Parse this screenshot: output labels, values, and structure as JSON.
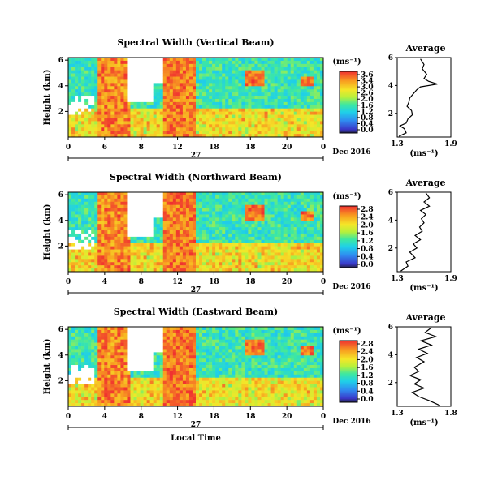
{
  "chart_data": [
    {
      "type": "heatmap",
      "title": "Spectral Width (Vertical Beam)",
      "ylabel": "Height (km)",
      "yticks": [
        "2",
        "4",
        "6"
      ],
      "xticks": [
        "0",
        "6",
        "8",
        "12",
        "18",
        "18",
        "20",
        "0"
      ],
      "date_mid": "27",
      "date_right": "Dec 2016",
      "colorbar": {
        "unit": "(ms⁻¹)",
        "ticks": [
          "3.6",
          "3.4",
          "3.0",
          "2.6",
          "2.0",
          "1.6",
          "1.2",
          "0.8",
          "0.4",
          "0.0"
        ]
      },
      "average": {
        "title": "Average",
        "xlabel": "(ms⁻¹)",
        "xticks": [
          "1.3",
          "1.9"
        ],
        "yticks": [
          "2",
          "4",
          "6"
        ],
        "xlim": [
          1.3,
          1.9
        ],
        "ylim": [
          0.3,
          6.0
        ],
        "profile": [
          [
            1.32,
            0.35
          ],
          [
            1.4,
            0.6
          ],
          [
            1.38,
            0.9
          ],
          [
            1.33,
            1.1
          ],
          [
            1.4,
            1.3
          ],
          [
            1.42,
            1.6
          ],
          [
            1.47,
            1.9
          ],
          [
            1.46,
            2.2
          ],
          [
            1.41,
            2.5
          ],
          [
            1.43,
            2.8
          ],
          [
            1.44,
            3.1
          ],
          [
            1.48,
            3.4
          ],
          [
            1.52,
            3.7
          ],
          [
            1.56,
            3.9
          ],
          [
            1.75,
            4.1
          ],
          [
            1.65,
            4.3
          ],
          [
            1.6,
            4.5
          ],
          [
            1.63,
            4.8
          ],
          [
            1.58,
            5.2
          ],
          [
            1.6,
            5.5
          ],
          [
            1.56,
            5.9
          ]
        ]
      }
    },
    {
      "type": "heatmap",
      "title": "Spectral Width (Northward Beam)",
      "ylabel": "Height (km)",
      "yticks": [
        "2",
        "4",
        "6"
      ],
      "xticks": [
        "0",
        "4",
        "8",
        "12",
        "18",
        "18",
        "20",
        "0"
      ],
      "date_mid": "27",
      "date_right": "Dec 2016",
      "colorbar": {
        "unit": "(ms⁻¹)",
        "ticks": [
          "2.8",
          "2.4",
          "2.0",
          "1.6",
          "1.2",
          "0.8",
          "0.4",
          "0.0"
        ]
      },
      "average": {
        "title": "Average",
        "xlabel": "(ms⁻¹)",
        "xticks": [
          "1.3",
          "1.9"
        ],
        "yticks": [
          "2",
          "4",
          "6"
        ],
        "xlim": [
          1.3,
          1.9
        ],
        "ylim": [
          0.3,
          6.0
        ],
        "profile": [
          [
            1.34,
            0.35
          ],
          [
            1.42,
            0.7
          ],
          [
            1.4,
            1.0
          ],
          [
            1.5,
            1.3
          ],
          [
            1.44,
            1.7
          ],
          [
            1.52,
            2.0
          ],
          [
            1.48,
            2.3
          ],
          [
            1.56,
            2.6
          ],
          [
            1.5,
            2.9
          ],
          [
            1.58,
            3.2
          ],
          [
            1.55,
            3.5
          ],
          [
            1.6,
            3.8
          ],
          [
            1.57,
            4.1
          ],
          [
            1.62,
            4.4
          ],
          [
            1.56,
            4.7
          ],
          [
            1.66,
            5.0
          ],
          [
            1.6,
            5.3
          ],
          [
            1.66,
            5.6
          ],
          [
            1.62,
            5.95
          ]
        ]
      }
    },
    {
      "type": "heatmap",
      "title": "Spectral Width (Eastward Beam)",
      "ylabel": "Height (km)",
      "yticks": [
        "2",
        "4",
        "6"
      ],
      "xticks": [
        "0",
        "4",
        "8",
        "12",
        "18",
        "18",
        "20",
        "0"
      ],
      "date_mid": "27",
      "date_right": "Dec 2016",
      "xlabel": "Local Time",
      "colorbar": {
        "unit": "(ms⁻¹)",
        "ticks": [
          "2.8",
          "2.4",
          "2.0",
          "1.6",
          "1.2",
          "0.8",
          "0.4",
          "0.0"
        ]
      },
      "average": {
        "title": "Average",
        "xlabel": "(ms⁻¹)",
        "xticks": [
          "1.3",
          "1.8"
        ],
        "yticks": [
          "2",
          "4",
          "6"
        ],
        "xlim": [
          1.3,
          1.8
        ],
        "ylim": [
          0.3,
          6.0
        ],
        "profile": [
          [
            1.7,
            0.35
          ],
          [
            1.6,
            0.7
          ],
          [
            1.5,
            1.0
          ],
          [
            1.44,
            1.3
          ],
          [
            1.55,
            1.6
          ],
          [
            1.46,
            1.9
          ],
          [
            1.52,
            2.2
          ],
          [
            1.42,
            2.5
          ],
          [
            1.5,
            2.8
          ],
          [
            1.46,
            3.1
          ],
          [
            1.55,
            3.5
          ],
          [
            1.48,
            3.8
          ],
          [
            1.58,
            4.1
          ],
          [
            1.5,
            4.4
          ],
          [
            1.62,
            4.7
          ],
          [
            1.52,
            5.0
          ],
          [
            1.66,
            5.3
          ],
          [
            1.56,
            5.6
          ],
          [
            1.62,
            5.95
          ]
        ]
      }
    }
  ]
}
